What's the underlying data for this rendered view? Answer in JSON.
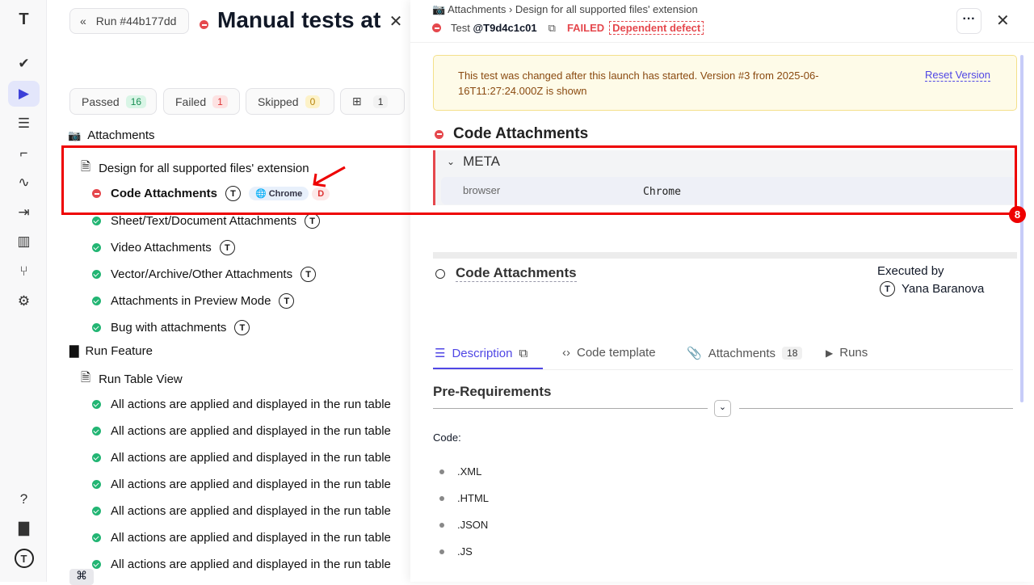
{
  "nav": {
    "items": [
      {
        "icon": "logo-icon"
      },
      {
        "icon": "check-icon"
      },
      {
        "icon": "play-circle-icon",
        "active": true
      },
      {
        "icon": "list-check-icon"
      },
      {
        "icon": "steps-icon"
      },
      {
        "icon": "pulse-icon"
      },
      {
        "icon": "import-icon"
      },
      {
        "icon": "chart-icon"
      },
      {
        "icon": "branch-icon"
      },
      {
        "icon": "gear-icon"
      }
    ],
    "bottom": [
      {
        "icon": "help-icon"
      },
      {
        "icon": "folder-icon"
      },
      {
        "icon": "avatar-icon"
      }
    ]
  },
  "left": {
    "run_button": "Run #44b177dd",
    "title": "Manual tests at",
    "filters": [
      {
        "label": "Passed",
        "count": "16"
      },
      {
        "label": "Failed",
        "count": "1"
      },
      {
        "label": "Skipped",
        "count": "0"
      },
      {
        "label": "",
        "count": "1"
      }
    ],
    "tree": [
      {
        "type": "suite",
        "label": "Attachments",
        "icon": "camera-icon"
      },
      {
        "type": "file",
        "label": "Design for all supported files' extension"
      },
      {
        "type": "test",
        "status": "failed",
        "label": "Code Attachments",
        "tag": "Chrome",
        "defect": "D"
      },
      {
        "type": "test",
        "status": "passed",
        "label": "Sheet/Text/Document Attachments"
      },
      {
        "type": "test",
        "status": "passed",
        "label": "Video Attachments"
      },
      {
        "type": "test",
        "status": "passed",
        "label": "Vector/Archive/Other Attachments"
      },
      {
        "type": "test",
        "status": "passed",
        "label": "Attachments in Preview Mode"
      },
      {
        "type": "test",
        "status": "passed",
        "label": "Bug with attachments"
      },
      {
        "type": "folder",
        "label": "Run Feature"
      },
      {
        "type": "file",
        "label": "Run Table View"
      },
      {
        "type": "test",
        "status": "passed",
        "label": "All actions are applied and displayed in the run table"
      },
      {
        "type": "test",
        "status": "passed",
        "label": "All actions are applied and displayed in the run table"
      },
      {
        "type": "test",
        "status": "passed",
        "label": "All actions are applied and displayed in the run table"
      },
      {
        "type": "test",
        "status": "passed",
        "label": "All actions are applied and displayed in the run table"
      },
      {
        "type": "test",
        "status": "passed",
        "label": "All actions are applied and displayed in the run table"
      },
      {
        "type": "test",
        "status": "passed",
        "label": "All actions are applied and displayed in the run table"
      },
      {
        "type": "test",
        "status": "passed",
        "label": "All actions are applied and displayed in the run table"
      }
    ],
    "shortcut": "⌘"
  },
  "right": {
    "breadcrumb": [
      "Attachments",
      "Design for all supported files' extension"
    ],
    "test_prefix": "Test",
    "test_id": "@T9d4c1c01",
    "status": "FAILED",
    "defect": "Dependent defect",
    "notice": "This test was changed after this launch has started. Version #3 from 2025-06-16T11:27:24.000Z is shown",
    "reset": "Reset Version",
    "heading": "Code Attachments",
    "meta_title": "META",
    "meta": [
      {
        "key": "browser",
        "value": "Chrome"
      }
    ],
    "sub_title": "Code Attachments",
    "executed_label": "Executed by",
    "executed_by": "Yana Baranova",
    "tabs": [
      {
        "label": "Description",
        "active": true
      },
      {
        "label": "Code template"
      },
      {
        "label": "Attachments",
        "count": "18"
      },
      {
        "label": "Runs"
      }
    ],
    "section": "Pre-Requirements",
    "code_label": "Code:",
    "bullets": [
      ".XML",
      ".HTML",
      ".JSON",
      ".JS"
    ]
  },
  "annotation": {
    "badge": "8",
    "color": "#ee0000"
  },
  "colors": {
    "accent": "#4f46e5",
    "failed": "#e5484d",
    "passed": "#22b573"
  }
}
